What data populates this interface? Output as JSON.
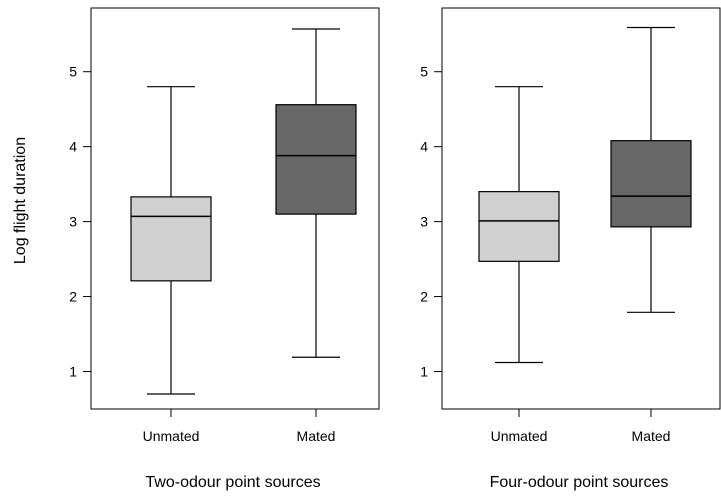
{
  "chart_data": [
    {
      "type": "box",
      "title": "",
      "xlabel": "Two-odour point sources",
      "ylabel": "Log flight duration",
      "ylim": [
        0.5,
        5.85
      ],
      "yticks": [
        1,
        2,
        3,
        4,
        5
      ],
      "categories": [
        "Unmated",
        "Mated"
      ],
      "boxes": [
        {
          "label": "Unmated",
          "whisker_low": 0.7,
          "q1": 2.21,
          "median": 3.07,
          "q3": 3.33,
          "whisker_high": 4.8,
          "fill": "#d0d0d0"
        },
        {
          "label": "Mated",
          "whisker_low": 1.19,
          "q1": 3.1,
          "median": 3.88,
          "q3": 4.56,
          "whisker_high": 5.57,
          "fill": "#676767"
        }
      ]
    },
    {
      "type": "box",
      "title": "",
      "xlabel": "Four-odour point sources",
      "ylabel": "",
      "ylim": [
        0.5,
        5.85
      ],
      "yticks": [
        1,
        2,
        3,
        4,
        5
      ],
      "categories": [
        "Unmated",
        "Mated"
      ],
      "boxes": [
        {
          "label": "Unmated",
          "whisker_low": 1.12,
          "q1": 2.47,
          "median": 3.01,
          "q3": 3.4,
          "whisker_high": 4.8,
          "fill": "#d0d0d0"
        },
        {
          "label": "Mated",
          "whisker_low": 1.79,
          "q1": 2.93,
          "median": 3.34,
          "q3": 4.08,
          "whisker_high": 5.59,
          "fill": "#676767"
        }
      ]
    }
  ]
}
